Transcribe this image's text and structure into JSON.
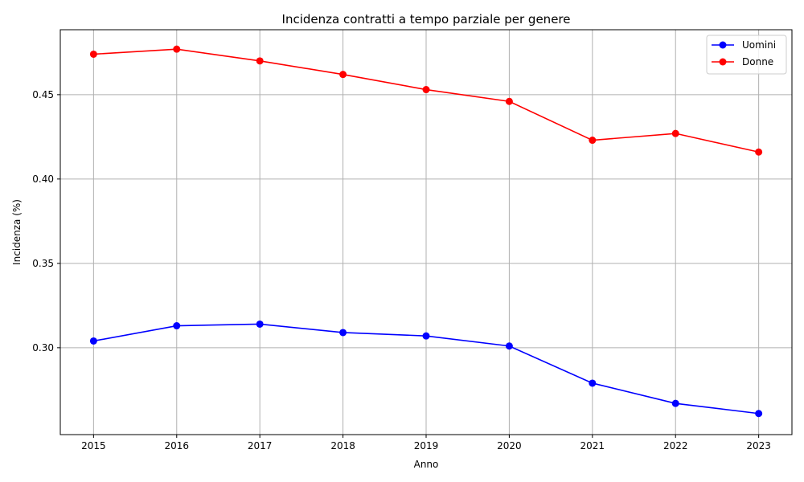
{
  "chart_data": {
    "type": "line",
    "title": "Incidenza contratti a tempo parziale per genere",
    "xlabel": "Anno",
    "ylabel": "Incidenza (%)",
    "x": [
      2015,
      2016,
      2017,
      2018,
      2019,
      2020,
      2021,
      2022,
      2023
    ],
    "x_tick_labels": [
      "2015",
      "2016",
      "2017",
      "2018",
      "2019",
      "2020",
      "2021",
      "2022",
      "2023"
    ],
    "y_ticks": [
      0.3,
      0.35,
      0.4,
      0.45
    ],
    "y_tick_labels": [
      "0.30",
      "0.35",
      "0.40",
      "0.45"
    ],
    "xlim": [
      2014.6,
      2023.4
    ],
    "ylim": [
      0.2485,
      0.4885
    ],
    "grid": true,
    "legend_position": "top-right",
    "series": [
      {
        "name": "Uomini",
        "color": "#0000ff",
        "marker": "circle",
        "values": [
          0.304,
          0.313,
          0.314,
          0.309,
          0.307,
          0.301,
          0.279,
          0.267,
          0.261
        ]
      },
      {
        "name": "Donne",
        "color": "#ff0000",
        "marker": "circle",
        "values": [
          0.474,
          0.477,
          0.47,
          0.462,
          0.453,
          0.446,
          0.423,
          0.427,
          0.416
        ]
      }
    ]
  }
}
